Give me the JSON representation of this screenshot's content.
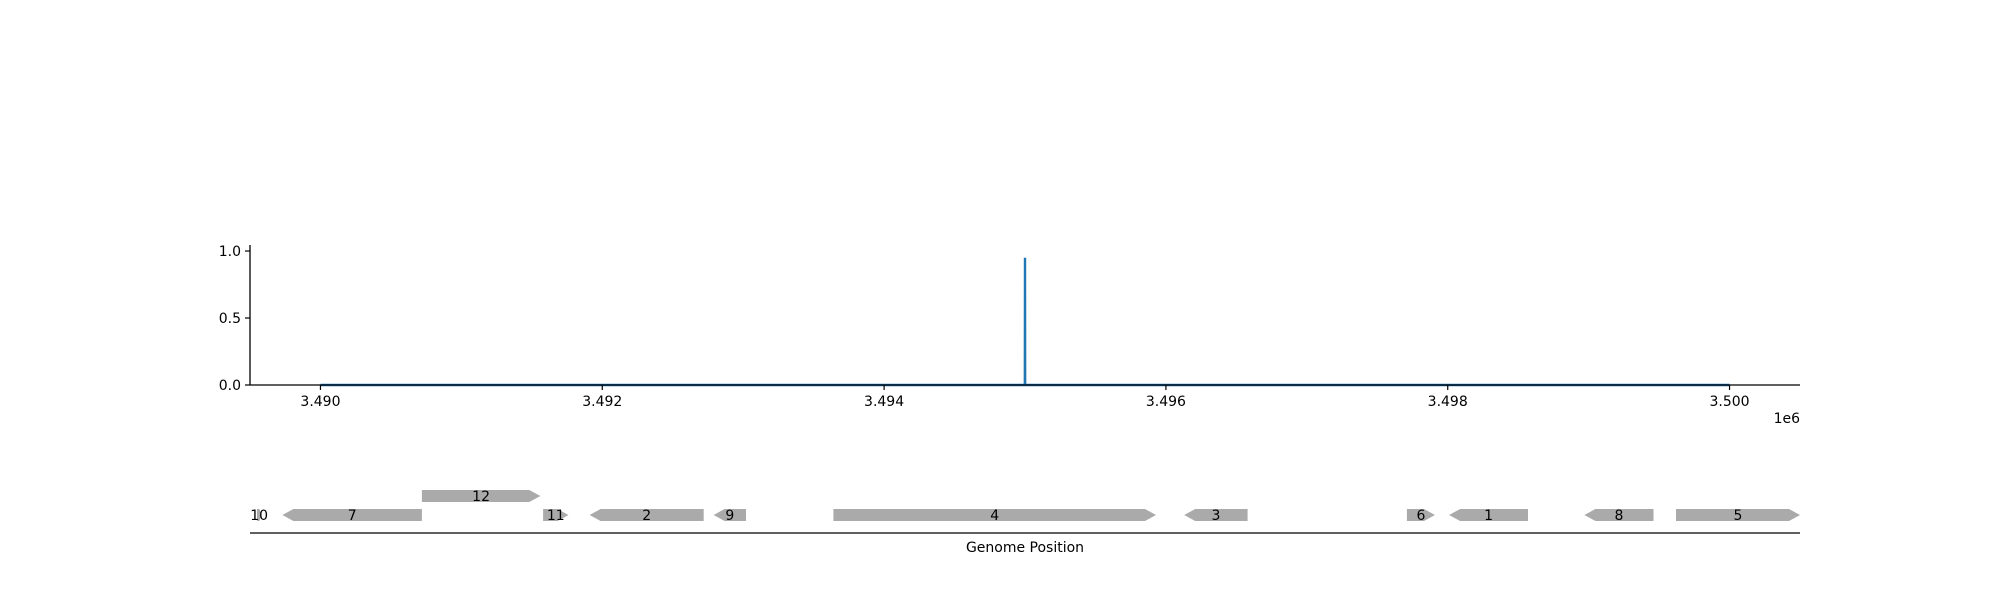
{
  "chart_data": [
    {
      "type": "line",
      "x": [
        3490000,
        3494999,
        3495000,
        3495001,
        3500000
      ],
      "series": [
        {
          "color": "#1f77b4",
          "values": [
            0,
            0,
            0.95,
            0,
            0
          ]
        }
      ],
      "xlim": [
        3489500,
        3500500
      ],
      "ylim": [
        0,
        1.03
      ],
      "x_ticks": [
        3490000,
        3492000,
        3494000,
        3496000,
        3498000,
        3500000
      ],
      "x_tick_labels": [
        "3.490",
        "3.492",
        "3.494",
        "3.496",
        "3.498",
        "3.500"
      ],
      "x_offset_label": "1e6",
      "y_ticks": [
        0,
        0.5,
        1
      ],
      "y_tick_labels": [
        "0.0",
        "0.5",
        "1.0"
      ],
      "grid": false
    },
    {
      "type": "gene-track",
      "xlabel": "Genome Position",
      "xlim": [
        3489500,
        3500500
      ],
      "gene_color": "#aaaaaa",
      "genes": [
        {
          "label": "10",
          "start": 3489550,
          "end": 3489580,
          "strand": "+",
          "row": 0
        },
        {
          "label": "7",
          "start": 3489730,
          "end": 3490720,
          "strand": "-",
          "row": 0
        },
        {
          "label": "12",
          "start": 3490720,
          "end": 3491560,
          "strand": "+",
          "row": 1
        },
        {
          "label": "11",
          "start": 3491580,
          "end": 3491760,
          "strand": "+",
          "row": 0
        },
        {
          "label": "2",
          "start": 3491910,
          "end": 3492720,
          "strand": "-",
          "row": 0
        },
        {
          "label": "9",
          "start": 3492790,
          "end": 3493020,
          "strand": "-",
          "row": 0
        },
        {
          "label": "4",
          "start": 3493640,
          "end": 3495930,
          "strand": "+",
          "row": 0
        },
        {
          "label": "3",
          "start": 3496130,
          "end": 3496580,
          "strand": "-",
          "row": 0
        },
        {
          "label": "6",
          "start": 3497710,
          "end": 3497910,
          "strand": "+",
          "row": 0
        },
        {
          "label": "1",
          "start": 3498010,
          "end": 3498570,
          "strand": "-",
          "row": 0
        },
        {
          "label": "8",
          "start": 3498970,
          "end": 3499460,
          "strand": "-",
          "row": 0
        },
        {
          "label": "5",
          "start": 3499620,
          "end": 3500500,
          "strand": "+",
          "row": 0
        }
      ]
    }
  ]
}
